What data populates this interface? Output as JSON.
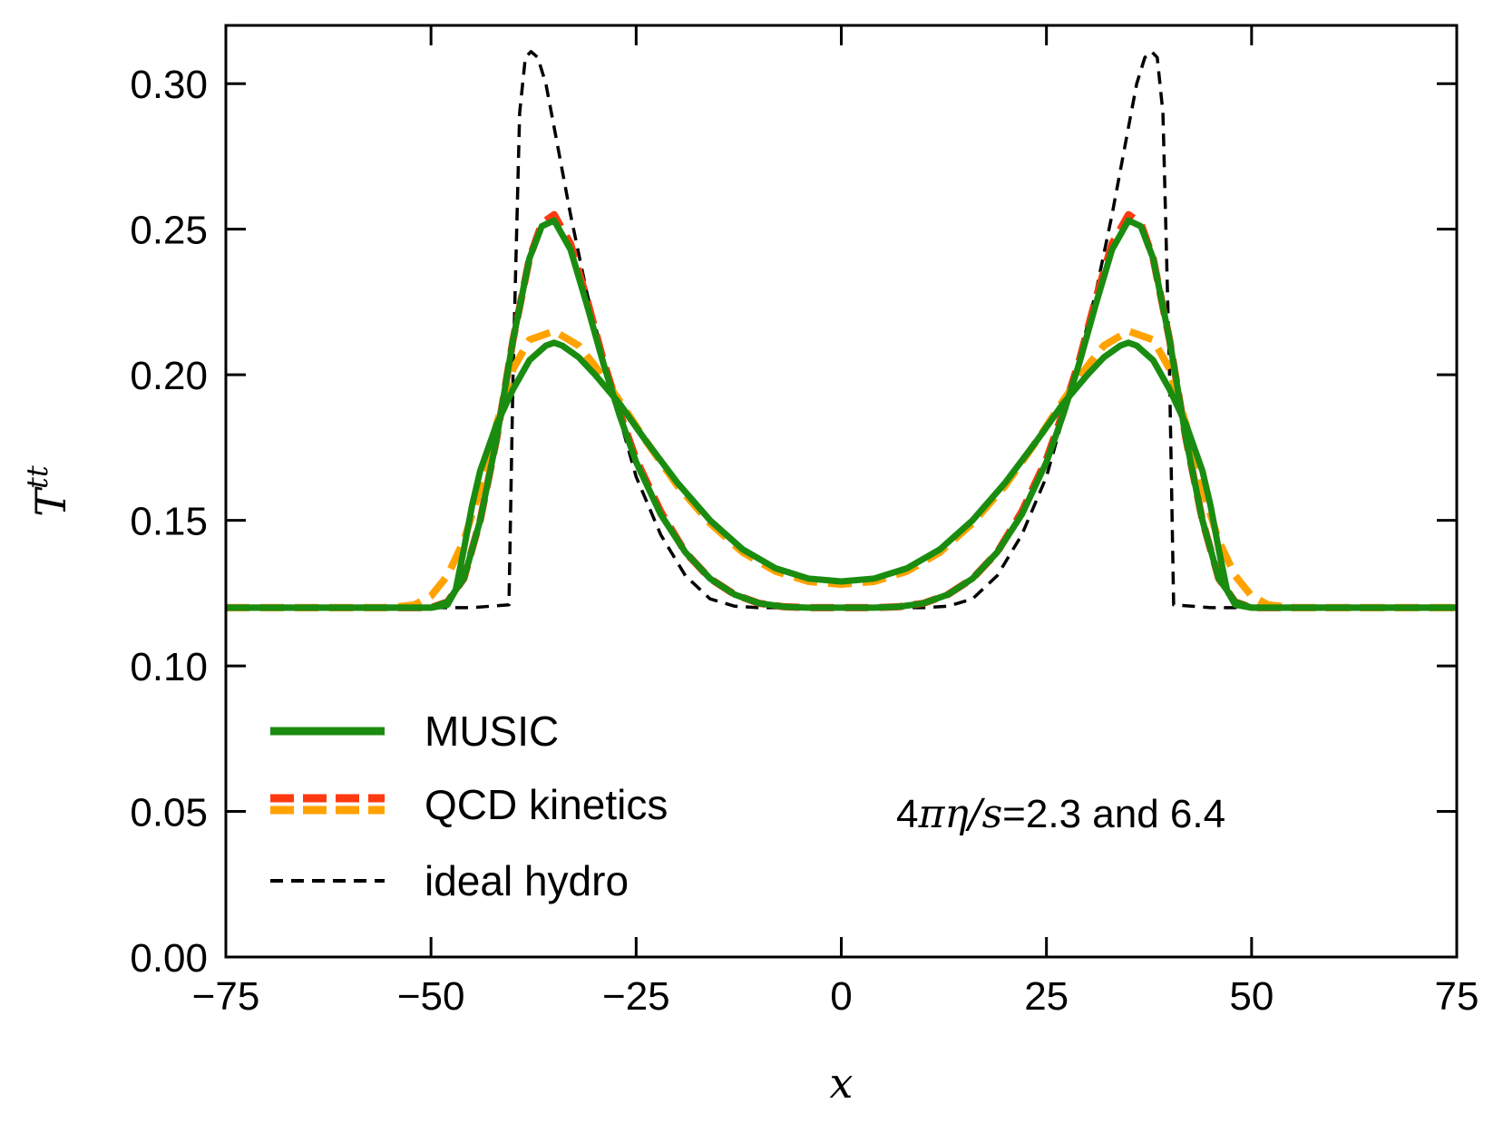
{
  "chart_data": {
    "type": "line",
    "title": "",
    "xlabel": "x",
    "ylabel_main": "T",
    "ylabel_sup": "tt",
    "xlim": [
      -75,
      75
    ],
    "ylim": [
      0,
      0.32
    ],
    "xticks": [
      -75,
      -50,
      -25,
      0,
      25,
      50,
      75
    ],
    "xtick_labels": [
      "−75",
      "−50",
      "−25",
      "0",
      "25",
      "50",
      "75"
    ],
    "yticks": [
      0,
      0.05,
      0.1,
      0.15,
      0.2,
      0.25,
      0.3
    ],
    "ytick_labels": [
      "0.00",
      "0.05",
      "0.10",
      "0.15",
      "0.20",
      "0.25",
      "0.30"
    ],
    "legend_position": "lower-left",
    "grid": false,
    "annotation": {
      "prefix": "4",
      "math": "πη/s",
      "suffix": "=2.3 and 6.4"
    },
    "legend": [
      {
        "label": "MUSIC",
        "style": "solid",
        "colors": [
          "#1a8c10"
        ]
      },
      {
        "label": "QCD kinetics",
        "style": "dashed",
        "colors": [
          "#ff3a10",
          "#ffa200"
        ]
      },
      {
        "label": "ideal hydro",
        "style": "dashed-thin",
        "colors": [
          "#000000"
        ]
      }
    ],
    "series": [
      {
        "name": "ideal hydro",
        "color": "#000000",
        "style": "dashed-thin",
        "x": [
          -75,
          -45,
          -40.5,
          -40,
          -39.2,
          -38.5,
          -37.8,
          -37,
          -36,
          -35,
          -33,
          -31,
          -28,
          -25,
          -22,
          -19,
          -16,
          -13,
          -10,
          0,
          10,
          13,
          16,
          19,
          22,
          25,
          28,
          31,
          33,
          35,
          36,
          37,
          37.8,
          38.5,
          39.2,
          40,
          40.5,
          45,
          75
        ],
        "y": [
          0.12,
          0.12,
          0.121,
          0.2,
          0.29,
          0.309,
          0.311,
          0.309,
          0.3,
          0.285,
          0.255,
          0.228,
          0.195,
          0.165,
          0.145,
          0.131,
          0.123,
          0.1205,
          0.12,
          0.12,
          0.12,
          0.1205,
          0.123,
          0.131,
          0.145,
          0.165,
          0.195,
          0.228,
          0.255,
          0.285,
          0.3,
          0.309,
          0.311,
          0.309,
          0.29,
          0.2,
          0.121,
          0.12,
          0.12
        ]
      },
      {
        "name": "QCD kinetics (4πη/s=2.3)",
        "color": "#ff3a10",
        "style": "dashed",
        "x": [
          -75,
          -50,
          -48,
          -46,
          -44,
          -42,
          -40,
          -38,
          -36.5,
          -35,
          -33,
          -31,
          -29,
          -27,
          -25,
          -22,
          -19,
          -16,
          -13,
          -10,
          -7,
          -4,
          0,
          4,
          7,
          10,
          13,
          16,
          19,
          22,
          25,
          27,
          29,
          31,
          33,
          35,
          36.5,
          38,
          40,
          42,
          44,
          46,
          48,
          50,
          75
        ],
        "y": [
          0.12,
          0.12,
          0.122,
          0.13,
          0.15,
          0.178,
          0.212,
          0.24,
          0.252,
          0.255,
          0.245,
          0.226,
          0.205,
          0.187,
          0.171,
          0.153,
          0.139,
          0.13,
          0.1245,
          0.1215,
          0.1203,
          0.12,
          0.12,
          0.12,
          0.1203,
          0.1215,
          0.1245,
          0.13,
          0.139,
          0.153,
          0.171,
          0.187,
          0.205,
          0.226,
          0.245,
          0.255,
          0.252,
          0.24,
          0.212,
          0.178,
          0.15,
          0.13,
          0.122,
          0.12,
          0.12
        ]
      },
      {
        "name": "QCD kinetics (4πη/s=6.4)",
        "color": "#ffa200",
        "style": "dashed",
        "x": [
          -75,
          -55,
          -52,
          -50,
          -48,
          -46,
          -44,
          -42,
          -40,
          -38,
          -35,
          -32,
          -30,
          -27,
          -24,
          -20,
          -16,
          -12,
          -8,
          -4,
          0,
          4,
          8,
          12,
          16,
          20,
          24,
          27,
          30,
          32,
          35,
          38,
          40,
          42,
          44,
          46,
          48,
          50,
          52,
          55,
          75
        ],
        "y": [
          0.12,
          0.12,
          0.121,
          0.124,
          0.131,
          0.143,
          0.161,
          0.183,
          0.202,
          0.212,
          0.215,
          0.21,
          0.203,
          0.191,
          0.178,
          0.162,
          0.149,
          0.139,
          0.1325,
          0.129,
          0.128,
          0.129,
          0.1325,
          0.139,
          0.149,
          0.162,
          0.178,
          0.191,
          0.203,
          0.21,
          0.215,
          0.212,
          0.202,
          0.183,
          0.161,
          0.143,
          0.131,
          0.124,
          0.121,
          0.12,
          0.12
        ]
      },
      {
        "name": "MUSIC (4πη/s=2.3)",
        "color": "#1a8c10",
        "style": "solid",
        "x": [
          -75,
          -50,
          -48,
          -46,
          -44,
          -42,
          -40,
          -38,
          -36.5,
          -35,
          -33,
          -31,
          -29,
          -27,
          -25,
          -22,
          -19,
          -16,
          -13,
          -10,
          -7,
          -4,
          0,
          4,
          7,
          10,
          13,
          16,
          19,
          22,
          25,
          27,
          29,
          31,
          33,
          35,
          36.5,
          38,
          40,
          42,
          44,
          46,
          48,
          50,
          75
        ],
        "y": [
          0.12,
          0.12,
          0.122,
          0.13,
          0.15,
          0.178,
          0.212,
          0.24,
          0.251,
          0.253,
          0.243,
          0.224,
          0.204,
          0.186,
          0.17,
          0.152,
          0.139,
          0.13,
          0.1245,
          0.1215,
          0.1203,
          0.12,
          0.12,
          0.12,
          0.1203,
          0.1215,
          0.1245,
          0.13,
          0.139,
          0.152,
          0.17,
          0.186,
          0.204,
          0.224,
          0.243,
          0.253,
          0.251,
          0.24,
          0.212,
          0.178,
          0.15,
          0.13,
          0.122,
          0.12,
          0.12
        ]
      },
      {
        "name": "MUSIC (4πη/s=6.4)",
        "color": "#1a8c10",
        "style": "solid",
        "x": [
          -75,
          -50,
          -48,
          -47,
          -46,
          -45,
          -44,
          -42,
          -40,
          -38,
          -36,
          -35,
          -34,
          -32,
          -30,
          -27,
          -24,
          -20,
          -16,
          -12,
          -8,
          -4,
          0,
          4,
          8,
          12,
          16,
          20,
          24,
          27,
          30,
          32,
          34,
          35,
          36,
          38,
          40,
          42,
          44,
          45,
          46,
          47,
          48,
          50,
          75
        ],
        "y": [
          0.12,
          0.12,
          0.121,
          0.126,
          0.14,
          0.155,
          0.167,
          0.183,
          0.195,
          0.205,
          0.21,
          0.211,
          0.21,
          0.206,
          0.2,
          0.19,
          0.178,
          0.163,
          0.15,
          0.14,
          0.1335,
          0.13,
          0.129,
          0.13,
          0.1335,
          0.14,
          0.15,
          0.163,
          0.178,
          0.19,
          0.2,
          0.206,
          0.21,
          0.211,
          0.21,
          0.205,
          0.195,
          0.183,
          0.167,
          0.155,
          0.14,
          0.126,
          0.121,
          0.12,
          0.12
        ]
      }
    ]
  }
}
